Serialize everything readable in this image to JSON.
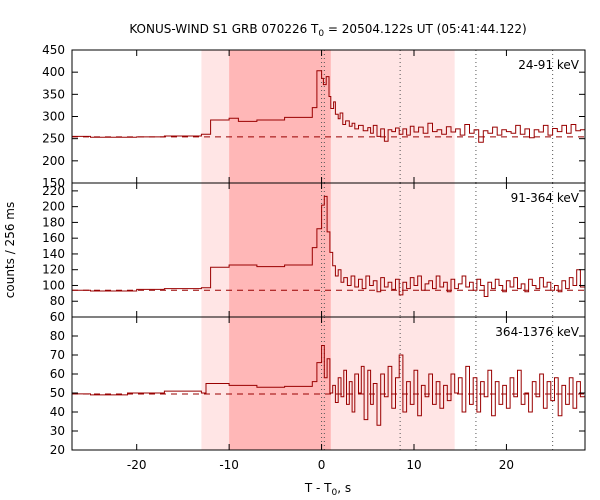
{
  "chart_data": {
    "type": "line",
    "title_main": "KONUS-WIND S1 GRB 070226 T",
    "title_sub": "0",
    "title_rest": " = 20504.122s UT (05:41:44.122)",
    "xlabel_main": "T - T",
    "xlabel_sub": "0",
    "xlabel_rest": ", s",
    "ylabel": "counts / 256 ms",
    "xlim": [
      -27,
      28.5
    ],
    "x_ticks": [
      -20,
      -10,
      0,
      10,
      20
    ],
    "shaded_regions": [
      {
        "x": [
          -13,
          14.4
        ],
        "opacity": 0.1
      },
      {
        "x": [
          -10,
          1.0
        ],
        "opacity": 0.2
      }
    ],
    "vertical_markers": [
      0.0,
      0.3,
      8.5,
      16.7,
      25.0
    ],
    "panels": [
      {
        "band": "24-91 keV",
        "ylim": [
          150,
          450
        ],
        "y_ticks": [
          150,
          200,
          250,
          300,
          350,
          400,
          450
        ],
        "background_level": 254,
        "steps": [
          [
            -27,
            255
          ],
          [
            -25,
            253
          ],
          [
            -20,
            254
          ],
          [
            -17,
            256
          ],
          [
            -13,
            260
          ],
          [
            -12,
            292
          ],
          [
            -10,
            296
          ],
          [
            -9,
            289
          ],
          [
            -7,
            292
          ],
          [
            -4,
            298
          ],
          [
            -1,
            320
          ],
          [
            -0.5,
            403
          ],
          [
            0,
            386
          ],
          [
            0.2,
            372
          ],
          [
            0.5,
            390
          ],
          [
            0.8,
            345
          ],
          [
            1.0,
            318
          ],
          [
            1.3,
            333
          ],
          [
            1.5,
            305
          ],
          [
            1.8,
            295
          ],
          [
            2.0,
            308
          ],
          [
            2.3,
            282
          ],
          [
            2.6,
            290
          ],
          [
            3.0,
            278
          ],
          [
            3.3,
            285
          ],
          [
            3.6,
            272
          ],
          [
            4.0,
            280
          ],
          [
            4.5,
            268
          ],
          [
            5.0,
            275
          ],
          [
            5.3,
            262
          ],
          [
            5.6,
            280
          ],
          [
            6.0,
            255
          ],
          [
            6.4,
            272
          ],
          [
            6.8,
            244
          ],
          [
            7.2,
            270
          ],
          [
            7.6,
            266
          ],
          [
            8.0,
            274
          ],
          [
            8.4,
            260
          ],
          [
            8.8,
            272
          ],
          [
            9.2,
            258
          ],
          [
            9.6,
            278
          ],
          [
            10.0,
            265
          ],
          [
            10.5,
            276
          ],
          [
            11.0,
            262
          ],
          [
            11.5,
            285
          ],
          [
            12.0,
            266
          ],
          [
            12.5,
            270
          ],
          [
            13.0,
            260
          ],
          [
            13.5,
            277
          ],
          [
            14.0,
            265
          ],
          [
            14.5,
            272
          ],
          [
            15.0,
            258
          ],
          [
            15.5,
            282
          ],
          [
            16.0,
            262
          ],
          [
            16.5,
            270
          ],
          [
            17.0,
            242
          ],
          [
            17.5,
            268
          ],
          [
            18.0,
            262
          ],
          [
            18.5,
            276
          ],
          [
            19.0,
            258
          ],
          [
            19.5,
            270
          ],
          [
            20.0,
            266
          ],
          [
            20.5,
            262
          ],
          [
            21.0,
            280
          ],
          [
            21.5,
            260
          ],
          [
            22.0,
            272
          ],
          [
            22.5,
            252
          ],
          [
            23.0,
            270
          ],
          [
            23.5,
            265
          ],
          [
            24.0,
            280
          ],
          [
            24.5,
            258
          ],
          [
            25.0,
            273
          ],
          [
            25.5,
            266
          ],
          [
            26.0,
            280
          ],
          [
            26.5,
            262
          ],
          [
            27.0,
            282
          ],
          [
            27.5,
            268
          ],
          [
            28.0,
            270
          ]
        ]
      },
      {
        "band": "91-364 keV",
        "ylim": [
          60,
          230
        ],
        "y_ticks": [
          60,
          80,
          100,
          120,
          140,
          160,
          180,
          200,
          220
        ],
        "background_level": 94,
        "steps": [
          [
            -27,
            94
          ],
          [
            -25,
            93
          ],
          [
            -20,
            95
          ],
          [
            -17,
            96
          ],
          [
            -13,
            97
          ],
          [
            -12,
            123
          ],
          [
            -10,
            126
          ],
          [
            -7,
            124
          ],
          [
            -4,
            126
          ],
          [
            -1,
            148
          ],
          [
            -0.5,
            172
          ],
          [
            0,
            202
          ],
          [
            0.3,
            213
          ],
          [
            0.6,
            168
          ],
          [
            0.9,
            142
          ],
          [
            1.2,
            125
          ],
          [
            1.5,
            112
          ],
          [
            1.8,
            120
          ],
          [
            2.1,
            104
          ],
          [
            2.4,
            110
          ],
          [
            2.8,
            100
          ],
          [
            3.2,
            112
          ],
          [
            3.6,
            98
          ],
          [
            4.0,
            108
          ],
          [
            4.4,
            96
          ],
          [
            4.8,
            112
          ],
          [
            5.2,
            100
          ],
          [
            5.6,
            106
          ],
          [
            6.0,
            92
          ],
          [
            6.4,
            110
          ],
          [
            6.8,
            98
          ],
          [
            7.2,
            104
          ],
          [
            7.6,
            95
          ],
          [
            8.0,
            108
          ],
          [
            8.4,
            88
          ],
          [
            8.8,
            104
          ],
          [
            9.2,
            96
          ],
          [
            9.6,
            110
          ],
          [
            10.0,
            100
          ],
          [
            10.4,
            112
          ],
          [
            10.8,
            94
          ],
          [
            11.2,
            102
          ],
          [
            11.6,
            106
          ],
          [
            12.0,
            96
          ],
          [
            12.4,
            112
          ],
          [
            12.8,
            98
          ],
          [
            13.2,
            104
          ],
          [
            13.6,
            92
          ],
          [
            14.0,
            108
          ],
          [
            14.4,
            96
          ],
          [
            14.8,
            102
          ],
          [
            15.2,
            112
          ],
          [
            15.6,
            98
          ],
          [
            16.0,
            104
          ],
          [
            16.4,
            94
          ],
          [
            16.8,
            108
          ],
          [
            17.2,
            100
          ],
          [
            17.6,
            86
          ],
          [
            18.0,
            104
          ],
          [
            18.4,
            96
          ],
          [
            18.8,
            108
          ],
          [
            19.2,
            100
          ],
          [
            19.6,
            92
          ],
          [
            20.0,
            106
          ],
          [
            20.4,
            98
          ],
          [
            20.8,
            110
          ],
          [
            21.2,
            96
          ],
          [
            21.6,
            102
          ],
          [
            22.0,
            92
          ],
          [
            22.4,
            108
          ],
          [
            22.8,
            100
          ],
          [
            23.2,
            96
          ],
          [
            23.6,
            110
          ],
          [
            24.0,
            98
          ],
          [
            24.4,
            104
          ],
          [
            24.8,
            94
          ],
          [
            25.2,
            100
          ],
          [
            25.6,
            92
          ],
          [
            26.0,
            106
          ],
          [
            26.4,
            96
          ],
          [
            26.8,
            110
          ],
          [
            27.2,
            100
          ],
          [
            27.6,
            120
          ],
          [
            28.0,
            98
          ]
        ]
      },
      {
        "band": "364-1376 keV",
        "ylim": [
          20,
          90
        ],
        "y_ticks": [
          20,
          30,
          40,
          50,
          60,
          70,
          80
        ],
        "background_level": 49.5,
        "steps": [
          [
            -27,
            49.5
          ],
          [
            -25,
            49
          ],
          [
            -21,
            50
          ],
          [
            -17,
            51
          ],
          [
            -13,
            50
          ],
          [
            -12.5,
            55
          ],
          [
            -10,
            54
          ],
          [
            -7,
            53
          ],
          [
            -4,
            53.5
          ],
          [
            -1,
            56
          ],
          [
            -0.5,
            66
          ],
          [
            0,
            75
          ],
          [
            0.3,
            58
          ],
          [
            0.6,
            68
          ],
          [
            0.9,
            50
          ],
          [
            1.2,
            54
          ],
          [
            1.5,
            45
          ],
          [
            1.8,
            58
          ],
          [
            2.1,
            48
          ],
          [
            2.4,
            62
          ],
          [
            2.7,
            44
          ],
          [
            3.0,
            56
          ],
          [
            3.3,
            40
          ],
          [
            3.6,
            60
          ],
          [
            4.0,
            50
          ],
          [
            4.3,
            64
          ],
          [
            4.6,
            36
          ],
          [
            5.0,
            62
          ],
          [
            5.3,
            44
          ],
          [
            5.6,
            55
          ],
          [
            6.0,
            33
          ],
          [
            6.4,
            60
          ],
          [
            6.8,
            48
          ],
          [
            7.2,
            64
          ],
          [
            7.6,
            42
          ],
          [
            8.0,
            58
          ],
          [
            8.4,
            70
          ],
          [
            8.8,
            40
          ],
          [
            9.2,
            56
          ],
          [
            9.6,
            44
          ],
          [
            10.0,
            62
          ],
          [
            10.4,
            38
          ],
          [
            10.8,
            54
          ],
          [
            11.2,
            48
          ],
          [
            11.6,
            60
          ],
          [
            12.0,
            44
          ],
          [
            12.4,
            56
          ],
          [
            12.8,
            42
          ],
          [
            13.2,
            54
          ],
          [
            13.6,
            46
          ],
          [
            14.0,
            60
          ],
          [
            14.4,
            50
          ],
          [
            14.8,
            58
          ],
          [
            15.2,
            40
          ],
          [
            15.6,
            64
          ],
          [
            16.0,
            44
          ],
          [
            16.4,
            58
          ],
          [
            16.8,
            40
          ],
          [
            17.2,
            56
          ],
          [
            17.6,
            48
          ],
          [
            18.0,
            62
          ],
          [
            18.4,
            38
          ],
          [
            18.8,
            56
          ],
          [
            19.2,
            44
          ],
          [
            19.6,
            54
          ],
          [
            20.0,
            42
          ],
          [
            20.4,
            58
          ],
          [
            20.8,
            48
          ],
          [
            21.2,
            62
          ],
          [
            21.6,
            44
          ],
          [
            22.0,
            50
          ],
          [
            22.4,
            40
          ],
          [
            22.8,
            56
          ],
          [
            23.2,
            48
          ],
          [
            23.6,
            60
          ],
          [
            24.0,
            42
          ],
          [
            24.4,
            56
          ],
          [
            24.8,
            46
          ],
          [
            25.2,
            58
          ],
          [
            25.6,
            38
          ],
          [
            26.0,
            54
          ],
          [
            26.4,
            44
          ],
          [
            26.8,
            58
          ],
          [
            27.2,
            42
          ],
          [
            27.6,
            56
          ],
          [
            28.0,
            48
          ]
        ]
      }
    ]
  },
  "colors": {
    "curve": "#990000",
    "shade": "#ff0000",
    "axis": "#000000",
    "marker": "#555555"
  }
}
